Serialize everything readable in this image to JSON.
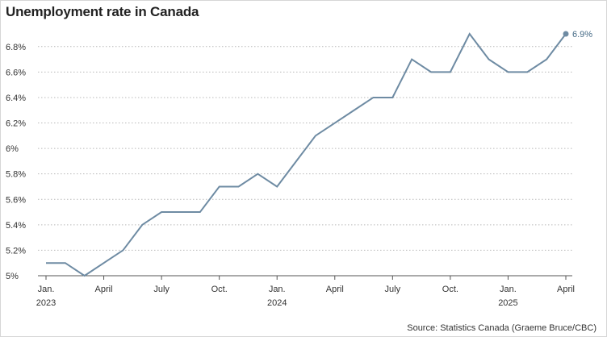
{
  "title": "Unemployment rate in Canada",
  "source": "Source: Statistics Canada (Graeme Bruce/CBC)",
  "chart_data": {
    "type": "line",
    "title": "Unemployment rate in Canada",
    "xlabel": "",
    "ylabel": "",
    "y_unit": "%",
    "ylim": [
      5.0,
      6.9
    ],
    "y_ticks": [
      5.0,
      5.2,
      5.4,
      5.6,
      5.8,
      6.0,
      6.2,
      6.4,
      6.6,
      6.8
    ],
    "y_tick_labels": [
      "5%",
      "5.2%",
      "5.4%",
      "5.6%",
      "5.8%",
      "6%",
      "6.2%",
      "6.4%",
      "6.6%",
      "6.8%"
    ],
    "x_ticks": [
      {
        "index": 0,
        "line1": "Jan.",
        "line2": "2023"
      },
      {
        "index": 3,
        "line1": "April",
        "line2": ""
      },
      {
        "index": 6,
        "line1": "July",
        "line2": ""
      },
      {
        "index": 9,
        "line1": "Oct.",
        "line2": ""
      },
      {
        "index": 12,
        "line1": "Jan.",
        "line2": "2024"
      },
      {
        "index": 15,
        "line1": "April",
        "line2": ""
      },
      {
        "index": 18,
        "line1": "July",
        "line2": ""
      },
      {
        "index": 21,
        "line1": "Oct.",
        "line2": ""
      },
      {
        "index": 24,
        "line1": "Jan.",
        "line2": "2025"
      },
      {
        "index": 27,
        "line1": "April",
        "line2": ""
      }
    ],
    "grid": "horizontal dotted",
    "line_color": "#6e8ba3",
    "x": [
      "2023-01",
      "2023-02",
      "2023-03",
      "2023-04",
      "2023-05",
      "2023-06",
      "2023-07",
      "2023-08",
      "2023-09",
      "2023-10",
      "2023-11",
      "2023-12",
      "2024-01",
      "2024-02",
      "2024-03",
      "2024-04",
      "2024-05",
      "2024-06",
      "2024-07",
      "2024-08",
      "2024-09",
      "2024-10",
      "2024-11",
      "2024-12",
      "2025-01",
      "2025-02",
      "2025-03",
      "2025-04"
    ],
    "series": [
      {
        "values": [
          5.1,
          5.1,
          5.0,
          5.1,
          5.2,
          5.4,
          5.5,
          5.5,
          5.5,
          5.7,
          5.7,
          5.8,
          5.7,
          5.9,
          6.1,
          6.2,
          6.3,
          6.4,
          6.4,
          6.7,
          6.6,
          6.6,
          6.9,
          6.7,
          6.6,
          6.6,
          6.7,
          6.9
        ]
      }
    ],
    "end_label": "6.9%"
  }
}
